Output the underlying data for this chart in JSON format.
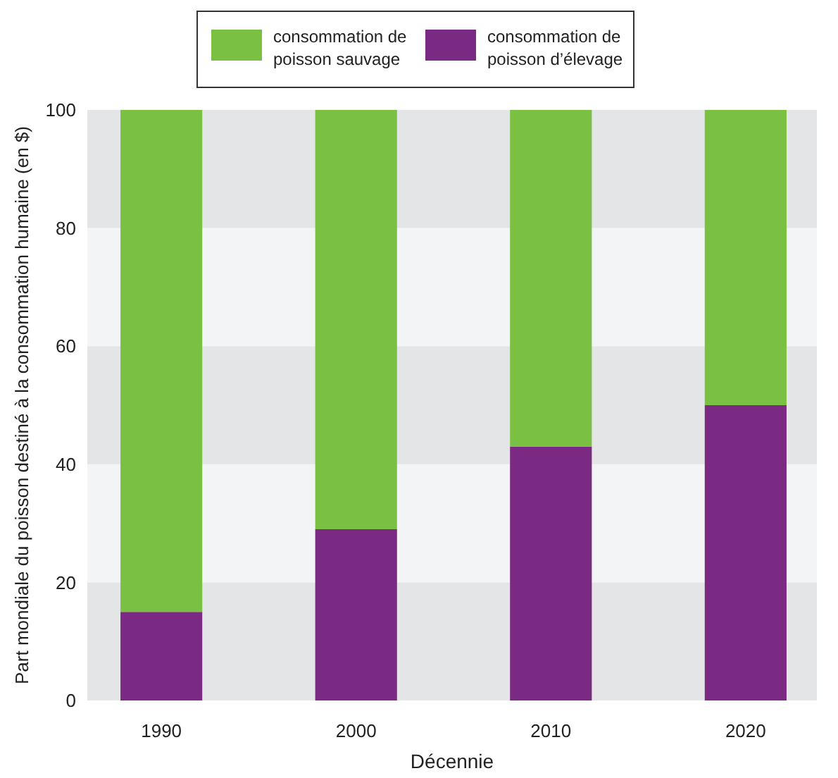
{
  "chart_data": {
    "type": "bar",
    "stacked": true,
    "xlabel": "Décennie",
    "ylabel": "Part mondiale du poisson destiné à la consommation humaine (en $)",
    "categories": [
      "1990",
      "2000",
      "2010",
      "2020"
    ],
    "series": [
      {
        "name": "consommation de poisson d’élevage",
        "color": "#7b2a83",
        "values": [
          15,
          29,
          43,
          50
        ]
      },
      {
        "name": "consommation de poisson sauvage",
        "color": "#7ac143",
        "values": [
          85,
          71,
          57,
          50
        ]
      }
    ],
    "ylim": [
      0,
      100
    ],
    "yticks": [
      0,
      20,
      40,
      60,
      80,
      100
    ],
    "legend": "top",
    "bands": [
      {
        "axis": "y",
        "from": 0,
        "to": 20,
        "color": "#e4e5e7"
      },
      {
        "axis": "y",
        "from": 20,
        "to": 40,
        "color": "#f3f4f6"
      },
      {
        "axis": "y",
        "from": 40,
        "to": 60,
        "color": "#e4e5e7"
      },
      {
        "axis": "y",
        "from": 60,
        "to": 80,
        "color": "#f3f4f6"
      },
      {
        "axis": "y",
        "from": 80,
        "to": 100,
        "color": "#e4e5e7"
      }
    ]
  }
}
